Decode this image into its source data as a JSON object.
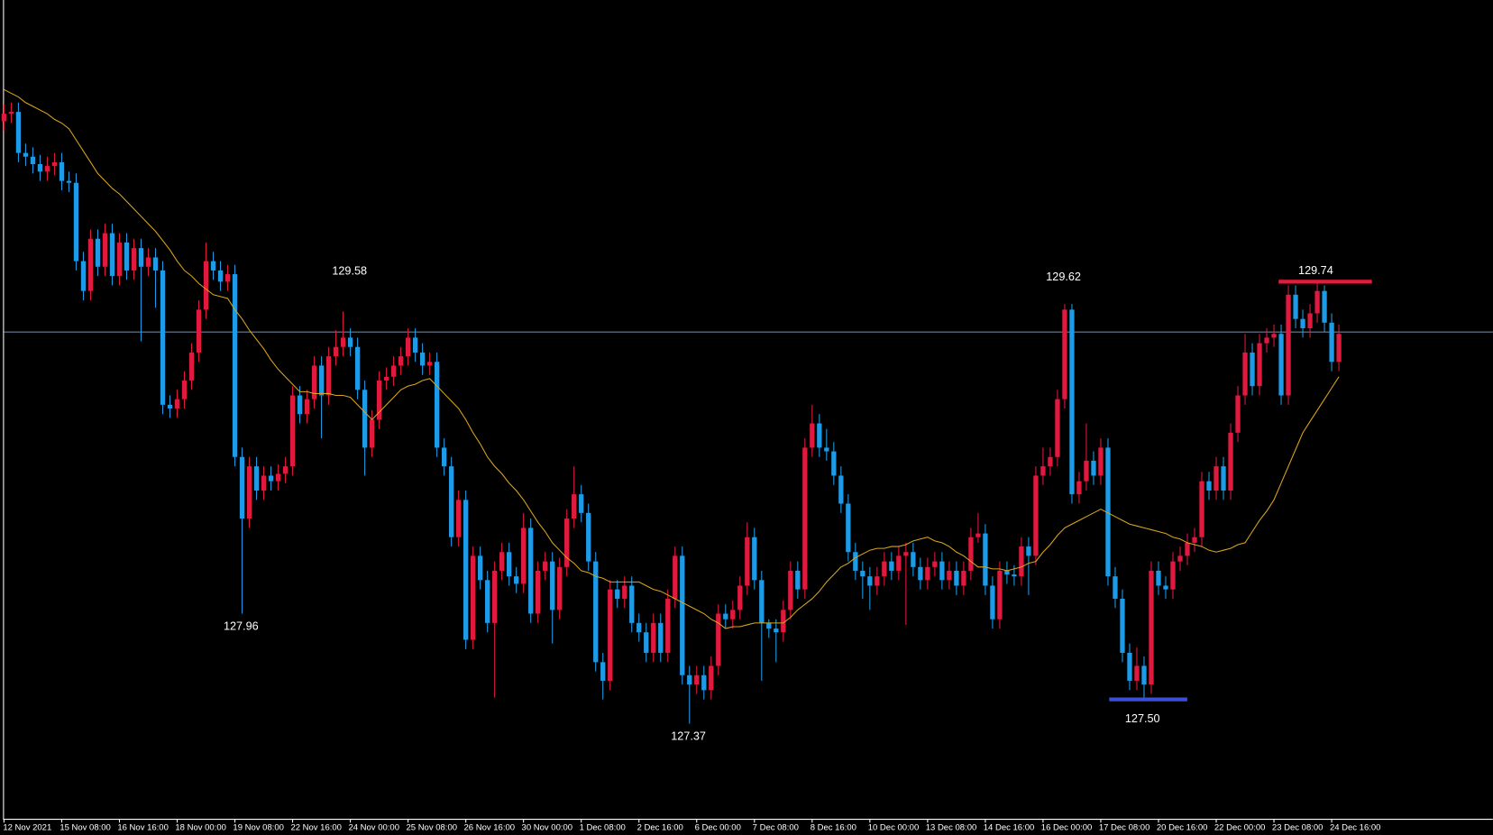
{
  "chart_data": {
    "type": "candlestick",
    "up_color": "#e0193f",
    "down_color": "#1e9be6",
    "ylim": [
      126.86,
      131.25
    ],
    "categories": [
      "12 Nov 2021",
      null,
      null,
      null,
      null,
      null,
      null,
      null,
      "15 Nov 08:00",
      null,
      null,
      null,
      null,
      null,
      null,
      null,
      "16 Nov 16:00",
      null,
      null,
      null,
      null,
      null,
      null,
      null,
      "18 Nov 00:00",
      null,
      null,
      null,
      null,
      null,
      null,
      null,
      "19 Nov 08:00",
      null,
      null,
      null,
      null,
      null,
      null,
      null,
      "22 Nov 16:00",
      null,
      null,
      null,
      null,
      null,
      null,
      null,
      "24 Nov 00:00",
      null,
      null,
      null,
      null,
      null,
      null,
      null,
      "25 Nov 08:00",
      null,
      null,
      null,
      null,
      null,
      null,
      null,
      "26 Nov 16:00",
      null,
      null,
      null,
      null,
      null,
      null,
      null,
      "30 Nov 00:00",
      null,
      null,
      null,
      null,
      null,
      null,
      null,
      "1 Dec 08:00",
      null,
      null,
      null,
      null,
      null,
      null,
      null,
      "2 Dec 16:00",
      null,
      null,
      null,
      null,
      null,
      null,
      null,
      "6 Dec 00:00",
      null,
      null,
      null,
      null,
      null,
      null,
      null,
      "7 Dec 08:00",
      null,
      null,
      null,
      null,
      null,
      null,
      null,
      "8 Dec 16:00",
      null,
      null,
      null,
      null,
      null,
      null,
      null,
      "10 Dec 00:00",
      null,
      null,
      null,
      null,
      null,
      null,
      null,
      "13 Dec 08:00",
      null,
      null,
      null,
      null,
      null,
      null,
      null,
      "14 Dec 16:00",
      null,
      null,
      null,
      null,
      null,
      null,
      null,
      "16 Dec 00:00",
      null,
      null,
      null,
      null,
      null,
      null,
      null,
      "17 Dec 08:00",
      null,
      null,
      null,
      null,
      null,
      null,
      null,
      "20 Dec 16:00",
      null,
      null,
      null,
      null,
      null,
      null,
      null,
      "22 Dec 00:00",
      null,
      null,
      null,
      null,
      null,
      null,
      null,
      "23 Dec 08:00",
      null,
      null,
      null,
      null,
      null,
      null,
      null,
      "24 Dec 16:00",
      null
    ],
    "open": [
      130.6,
      130.64,
      130.65,
      130.43,
      130.41,
      130.37,
      130.33,
      130.36,
      130.38,
      130.28,
      130.27,
      129.85,
      129.69,
      129.97,
      129.82,
      130.0,
      129.77,
      129.95,
      129.8,
      129.92,
      129.82,
      129.87,
      129.8,
      129.08,
      129.06,
      129.11,
      129.21,
      129.36,
      129.59,
      129.85,
      129.8,
      129.74,
      129.78,
      128.8,
      128.47,
      128.75,
      128.62,
      128.7,
      128.67,
      128.71,
      128.75,
      129.13,
      129.03,
      129.11,
      129.29,
      129.13,
      129.34,
      129.39,
      129.44,
      129.39,
      129.16,
      128.85,
      129.0,
      129.21,
      129.23,
      129.29,
      129.34,
      129.44,
      129.36,
      129.29,
      129.31,
      128.85,
      128.75,
      128.37,
      128.57,
      127.82,
      128.27,
      128.14,
      127.91,
      128.19,
      128.29,
      128.16,
      128.12,
      128.42,
      127.96,
      128.19,
      128.24,
      127.98,
      128.21,
      128.47,
      128.6,
      128.5,
      128.24,
      127.7,
      127.6,
      128.09,
      128.04,
      128.11,
      127.91,
      127.86,
      127.75,
      127.91,
      127.75,
      128.04,
      128.27,
      127.63,
      127.58,
      127.63,
      127.55,
      127.68,
      127.96,
      127.93,
      127.98,
      128.11,
      128.37,
      128.14,
      127.91,
      127.88,
      127.86,
      127.98,
      128.19,
      128.09,
      128.85,
      128.98,
      128.85,
      128.83,
      128.7,
      128.55,
      128.29,
      128.19,
      128.16,
      128.11,
      128.16,
      128.24,
      128.19,
      128.27,
      128.29,
      128.21,
      128.14,
      128.21,
      128.24,
      128.14,
      128.19,
      128.11,
      128.19,
      128.37,
      128.39,
      128.11,
      127.93,
      128.19,
      128.17,
      128.16,
      128.32,
      128.27,
      128.7,
      128.75,
      128.8,
      129.11,
      129.59,
      128.6,
      128.67,
      128.78,
      128.7,
      128.85,
      128.16,
      128.04,
      127.75,
      127.6,
      127.68,
      127.58,
      128.19,
      128.11,
      128.09,
      128.24,
      128.27,
      128.34,
      128.37,
      128.67,
      128.62,
      128.75,
      128.62,
      128.93,
      129.13,
      129.36,
      129.18,
      129.41,
      129.44,
      129.46,
      129.13,
      129.67,
      129.54,
      129.49,
      129.57,
      129.69,
      129.52,
      129.31
    ],
    "high": [
      130.69,
      130.7,
      130.7,
      130.48,
      130.46,
      130.42,
      130.41,
      130.43,
      130.43,
      130.33,
      130.32,
      129.9,
      130.02,
      130.02,
      130.05,
      130.05,
      130.0,
      130.0,
      129.97,
      129.97,
      129.92,
      129.92,
      129.85,
      129.13,
      129.16,
      129.26,
      129.41,
      129.64,
      129.95,
      129.9,
      129.85,
      129.83,
      129.83,
      128.85,
      128.8,
      128.8,
      128.75,
      128.75,
      128.76,
      128.8,
      129.18,
      129.18,
      129.16,
      129.34,
      129.34,
      129.39,
      129.48,
      129.58,
      129.49,
      129.44,
      129.21,
      129.05,
      129.26,
      129.28,
      129.34,
      129.39,
      129.49,
      129.49,
      129.41,
      129.36,
      129.36,
      128.9,
      128.8,
      128.62,
      128.62,
      128.32,
      128.32,
      128.19,
      128.24,
      128.34,
      128.34,
      128.21,
      128.5,
      128.47,
      128.24,
      128.29,
      128.29,
      128.26,
      128.52,
      128.75,
      128.65,
      128.55,
      128.29,
      127.75,
      128.14,
      128.14,
      128.16,
      128.16,
      127.96,
      127.91,
      127.96,
      127.96,
      128.09,
      128.32,
      128.32,
      127.68,
      127.68,
      127.68,
      127.73,
      128.01,
      128.01,
      128.03,
      128.16,
      128.45,
      128.42,
      128.19,
      127.93,
      127.93,
      128.03,
      128.24,
      128.24,
      128.9,
      129.08,
      129.03,
      128.95,
      128.88,
      128.75,
      128.6,
      128.34,
      128.24,
      128.21,
      128.21,
      128.29,
      128.29,
      128.32,
      128.34,
      128.34,
      128.26,
      128.26,
      128.29,
      128.29,
      128.24,
      128.24,
      128.24,
      128.42,
      128.5,
      128.44,
      128.16,
      128.24,
      128.24,
      128.22,
      128.37,
      128.37,
      128.75,
      128.85,
      128.85,
      129.16,
      129.62,
      129.62,
      128.72,
      128.98,
      128.83,
      128.9,
      128.9,
      128.21,
      128.09,
      127.8,
      127.78,
      127.73,
      128.24,
      128.24,
      128.16,
      128.29,
      128.32,
      128.39,
      128.42,
      128.72,
      128.72,
      128.8,
      128.8,
      128.98,
      129.18,
      129.46,
      129.41,
      129.46,
      129.49,
      129.51,
      129.51,
      129.72,
      129.72,
      129.59,
      129.62,
      129.74,
      129.72,
      129.57,
      129.51
    ],
    "low": [
      130.55,
      130.59,
      130.38,
      130.36,
      130.32,
      130.28,
      130.28,
      130.31,
      130.23,
      130.22,
      129.8,
      129.64,
      129.64,
      129.77,
      129.77,
      129.72,
      129.72,
      129.75,
      129.75,
      129.42,
      129.77,
      129.6,
      129.03,
      129.01,
      129.01,
      129.06,
      129.16,
      129.31,
      129.54,
      129.75,
      129.69,
      129.69,
      128.75,
      127.96,
      128.42,
      128.57,
      128.57,
      128.62,
      128.62,
      128.66,
      128.7,
      128.98,
      128.98,
      129.06,
      128.9,
      129.08,
      129.29,
      129.34,
      129.34,
      129.11,
      128.7,
      128.8,
      128.95,
      129.16,
      129.18,
      129.24,
      129.29,
      129.31,
      129.24,
      129.24,
      128.8,
      128.7,
      128.32,
      128.32,
      127.77,
      127.77,
      128.09,
      127.86,
      127.51,
      128.14,
      128.11,
      128.07,
      128.07,
      127.91,
      127.91,
      128.14,
      127.8,
      127.93,
      128.16,
      128.42,
      128.45,
      128.19,
      127.65,
      127.5,
      127.55,
      127.99,
      127.99,
      127.86,
      127.81,
      127.7,
      127.7,
      127.7,
      127.7,
      127.99,
      127.58,
      127.37,
      127.53,
      127.5,
      127.5,
      127.63,
      127.88,
      127.88,
      127.93,
      128.06,
      128.09,
      127.6,
      127.83,
      127.7,
      127.81,
      127.93,
      128.04,
      128.04,
      128.8,
      128.8,
      128.78,
      128.65,
      128.5,
      128.24,
      128.14,
      128.04,
      127.98,
      128.06,
      128.11,
      128.14,
      128.14,
      127.9,
      128.16,
      128.09,
      128.09,
      128.16,
      128.09,
      128.09,
      128.06,
      128.06,
      128.14,
      128.34,
      128.06,
      127.88,
      127.88,
      128.12,
      128.11,
      128.11,
      128.06,
      128.22,
      128.65,
      128.7,
      128.75,
      129.06,
      128.55,
      128.55,
      128.62,
      128.65,
      128.65,
      128.11,
      127.99,
      127.7,
      127.55,
      127.55,
      127.5,
      127.53,
      128.06,
      128.04,
      128.04,
      128.19,
      128.22,
      128.29,
      128.32,
      128.57,
      128.57,
      128.57,
      128.57,
      128.88,
      129.08,
      129.13,
      129.13,
      129.36,
      129.39,
      129.08,
      129.08,
      129.49,
      129.44,
      129.44,
      129.52,
      129.47,
      129.26,
      129.26
    ],
    "close": [
      130.64,
      130.65,
      130.43,
      130.41,
      130.37,
      130.33,
      130.36,
      130.38,
      130.28,
      130.27,
      129.85,
      129.69,
      129.97,
      129.82,
      130.0,
      129.77,
      129.95,
      129.8,
      129.92,
      129.82,
      129.87,
      129.8,
      129.08,
      129.06,
      129.11,
      129.21,
      129.36,
      129.59,
      129.85,
      129.8,
      129.74,
      129.78,
      128.8,
      128.47,
      128.75,
      128.62,
      128.7,
      128.67,
      128.71,
      128.75,
      129.13,
      129.03,
      129.11,
      129.29,
      129.13,
      129.34,
      129.39,
      129.44,
      129.39,
      129.16,
      128.85,
      129.0,
      129.21,
      129.23,
      129.29,
      129.34,
      129.44,
      129.36,
      129.29,
      129.31,
      128.85,
      128.75,
      128.37,
      128.57,
      127.82,
      128.27,
      128.14,
      127.91,
      128.19,
      128.29,
      128.16,
      128.12,
      128.42,
      127.96,
      128.19,
      128.24,
      127.98,
      128.21,
      128.47,
      128.6,
      128.5,
      128.24,
      127.7,
      127.6,
      128.09,
      128.04,
      128.11,
      127.91,
      127.86,
      127.75,
      127.91,
      127.75,
      128.04,
      128.27,
      127.63,
      127.58,
      127.63,
      127.55,
      127.68,
      127.96,
      127.93,
      127.98,
      128.11,
      128.37,
      128.14,
      127.91,
      127.88,
      127.86,
      127.98,
      128.19,
      128.09,
      128.85,
      128.98,
      128.85,
      128.83,
      128.7,
      128.55,
      128.29,
      128.19,
      128.16,
      128.11,
      128.16,
      128.24,
      128.19,
      128.27,
      128.29,
      128.21,
      128.14,
      128.21,
      128.24,
      128.14,
      128.19,
      128.11,
      128.19,
      128.37,
      128.39,
      128.11,
      127.93,
      128.19,
      128.17,
      128.16,
      128.32,
      128.27,
      128.7,
      128.75,
      128.8,
      129.11,
      129.59,
      128.6,
      128.67,
      128.78,
      128.7,
      128.85,
      128.16,
      128.04,
      127.75,
      127.6,
      127.68,
      127.58,
      128.19,
      128.11,
      128.09,
      128.24,
      128.27,
      128.34,
      128.37,
      128.67,
      128.62,
      128.75,
      128.62,
      128.93,
      129.13,
      129.36,
      129.18,
      129.41,
      129.44,
      129.46,
      129.13,
      129.67,
      129.54,
      129.49,
      129.57,
      129.69,
      129.52,
      129.31,
      129.46
    ],
    "moving_average": {
      "color": "#d9a51c",
      "values": [
        130.77,
        130.75,
        130.73,
        130.7,
        130.68,
        130.66,
        130.64,
        130.61,
        130.59,
        130.56,
        130.5,
        130.44,
        130.38,
        130.32,
        130.28,
        130.24,
        130.21,
        130.17,
        130.13,
        130.09,
        130.05,
        130.01,
        129.96,
        129.91,
        129.85,
        129.8,
        129.77,
        129.73,
        129.7,
        129.67,
        129.66,
        129.65,
        129.59,
        129.54,
        129.48,
        129.43,
        129.38,
        129.32,
        129.27,
        129.23,
        129.19,
        129.15,
        129.15,
        129.14,
        129.14,
        129.14,
        129.13,
        129.13,
        129.12,
        129.08,
        129.04,
        129.0,
        129.04,
        129.08,
        129.12,
        129.16,
        129.18,
        129.19,
        129.21,
        129.22,
        129.18,
        129.14,
        129.1,
        129.06,
        129.0,
        128.93,
        128.87,
        128.8,
        128.75,
        128.71,
        128.66,
        128.62,
        128.57,
        128.51,
        128.45,
        128.4,
        128.34,
        128.3,
        128.26,
        128.23,
        128.19,
        128.18,
        128.16,
        128.15,
        128.13,
        128.13,
        128.13,
        128.13,
        128.13,
        128.11,
        128.09,
        128.08,
        128.06,
        128.04,
        128.02,
        128.0,
        127.98,
        127.96,
        127.93,
        127.91,
        127.88,
        127.89,
        127.89,
        127.9,
        127.91,
        127.91,
        127.91,
        127.91,
        127.91,
        127.94,
        127.98,
        128.01,
        128.04,
        128.08,
        128.13,
        128.17,
        128.21,
        128.23,
        128.26,
        128.28,
        128.3,
        128.31,
        128.31,
        128.32,
        128.32,
        128.33,
        128.35,
        128.36,
        128.37,
        128.35,
        128.34,
        128.32,
        128.29,
        128.27,
        128.24,
        128.21,
        128.21,
        128.2,
        128.2,
        128.19,
        128.2,
        128.21,
        128.23,
        128.24,
        128.29,
        128.33,
        128.38,
        128.42,
        128.44,
        128.46,
        128.48,
        128.5,
        128.52,
        128.5,
        128.48,
        128.46,
        128.44,
        128.43,
        128.42,
        128.41,
        128.4,
        128.39,
        128.37,
        128.36,
        128.34,
        128.33,
        128.32,
        128.3,
        128.29,
        128.3,
        128.31,
        128.33,
        128.34,
        128.4,
        128.46,
        128.51,
        128.57,
        128.66,
        128.75,
        128.84,
        128.93,
        128.99,
        129.05,
        129.11,
        129.17,
        129.23
      ]
    },
    "horizontal_line": {
      "value": 129.47,
      "color": "#6d8399"
    },
    "levels": [
      {
        "value": 129.74,
        "color": "#e8193c"
      },
      {
        "value": 127.5,
        "color": "#3b4fd6"
      }
    ],
    "annotations": [
      {
        "value": 127.96,
        "label": "127.96"
      },
      {
        "value": 129.58,
        "label": "129.58"
      },
      {
        "value": 127.37,
        "label": "127.37"
      },
      {
        "value": 129.62,
        "label": "129.62"
      },
      {
        "value": 127.5,
        "label": "127.50"
      },
      {
        "value": 129.74,
        "label": "129.74"
      }
    ]
  }
}
